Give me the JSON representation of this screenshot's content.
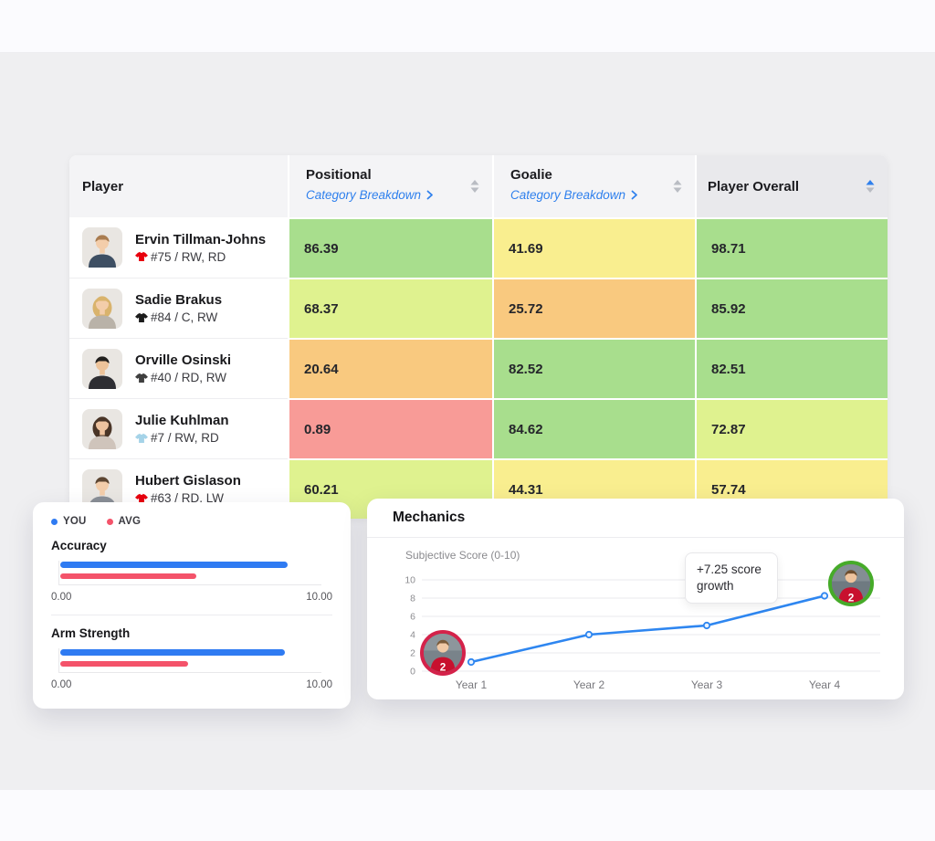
{
  "colors": {
    "accent_blue": "#2f80ed",
    "page_bg": "#efeff1",
    "strip_bg": "#fbfbfe"
  },
  "table": {
    "columns": [
      {
        "label": "Player"
      },
      {
        "label": "Positional",
        "link_label": "Category Breakdown",
        "sortable": true
      },
      {
        "label": "Goalie",
        "link_label": "Category Breakdown",
        "sortable": true
      },
      {
        "label": "Player Overall",
        "sortable": true,
        "sorted": "asc"
      }
    ],
    "rows": [
      {
        "name": "Ervin Tillman-Johns",
        "detail": "#75 / RW, RD",
        "jersey_color": "#e8000d",
        "avatar": {
          "skin": "#f3cdaa",
          "hair": "#a97c50",
          "shirt": "#3e4f63",
          "long_hair": false
        },
        "cells": [
          {
            "value": "86.39",
            "color": "#a8de8d"
          },
          {
            "value": "41.69",
            "color": "#f9ee8f"
          },
          {
            "value": "98.71",
            "color": "#a8de8d"
          }
        ]
      },
      {
        "name": "Sadie Brakus",
        "detail": "#84 / C, RW",
        "jersey_color": "#1c1c1c",
        "avatar": {
          "skin": "#f3cdaa",
          "hair": "#d9b36c",
          "shirt": "#b9b2a8",
          "long_hair": true
        },
        "cells": [
          {
            "value": "68.37",
            "color": "#dff28f"
          },
          {
            "value": "25.72",
            "color": "#f9c97f"
          },
          {
            "value": "85.92",
            "color": "#a8de8d"
          }
        ]
      },
      {
        "name": "Orville Osinski",
        "detail": "#40 / RD, RW",
        "jersey_color": "#3f3f3f",
        "avatar": {
          "skin": "#edc39a",
          "hair": "#22201e",
          "shirt": "#2e2e33",
          "long_hair": false
        },
        "cells": [
          {
            "value": "20.64",
            "color": "#f9c97f"
          },
          {
            "value": "82.52",
            "color": "#a8de8d"
          },
          {
            "value": "82.51",
            "color": "#a8de8d"
          }
        ]
      },
      {
        "name": "Julie Kuhlman",
        "detail": "#7 / RW, RD",
        "jersey_color": "#a5d3e8",
        "avatar": {
          "skin": "#eec39f",
          "hair": "#4a3527",
          "shirt": "#cfc4bb",
          "long_hair": true
        },
        "cells": [
          {
            "value": "0.89",
            "color": "#f89b97"
          },
          {
            "value": "84.62",
            "color": "#a8de8d"
          },
          {
            "value": "72.87",
            "color": "#dff28f"
          }
        ]
      },
      {
        "name": "Hubert Gislason",
        "detail": "#63 / RD, LW",
        "jersey_color": "#e8000d",
        "avatar": {
          "skin": "#f3cdaa",
          "hair": "#5d4632",
          "shirt": "#8a8f96",
          "long_hair": false
        },
        "cells": [
          {
            "value": "60.21",
            "color": "#dff28f"
          },
          {
            "value": "44.31",
            "color": "#f9ee8f"
          },
          {
            "value": "57.74",
            "color": "#f9ee8f"
          }
        ]
      }
    ]
  },
  "comparison_card": {
    "legend": [
      {
        "label": "YOU",
        "color": "#2f7bf2"
      },
      {
        "label": "AVG",
        "color": "#f4536a"
      }
    ],
    "metrics": [
      {
        "label": "Accuracy",
        "you": 8.7,
        "avg": 5.2,
        "scale_max": 10,
        "min_label": "0.00",
        "max_label": "10.00"
      },
      {
        "label": "Arm Strength",
        "you": 8.6,
        "avg": 4.9,
        "scale_max": 10,
        "min_label": "0.00",
        "max_label": "10.00"
      }
    ]
  },
  "mechanics": {
    "title": "Mechanics",
    "axis_label": "Subjective Score (0-10)",
    "tooltip": "+7.25 score growth",
    "start_avatar": {
      "ring": "#d4224a",
      "jersey": "#c8102e",
      "number": "2"
    },
    "end_avatar": {
      "ring": "#46ab29",
      "jersey": "#c8102e",
      "number": "2"
    },
    "chart_data": {
      "type": "line",
      "x": [
        "Year 1",
        "Year 2",
        "Year 3",
        "Year 4"
      ],
      "series": [
        {
          "name": "Subjective Score",
          "values": [
            1,
            4,
            5,
            8.25
          ]
        }
      ],
      "ylim": [
        0,
        10
      ],
      "yticks": [
        0,
        2,
        4,
        6,
        8,
        10
      ],
      "line_color": "#2e86f0",
      "grid": true
    }
  }
}
